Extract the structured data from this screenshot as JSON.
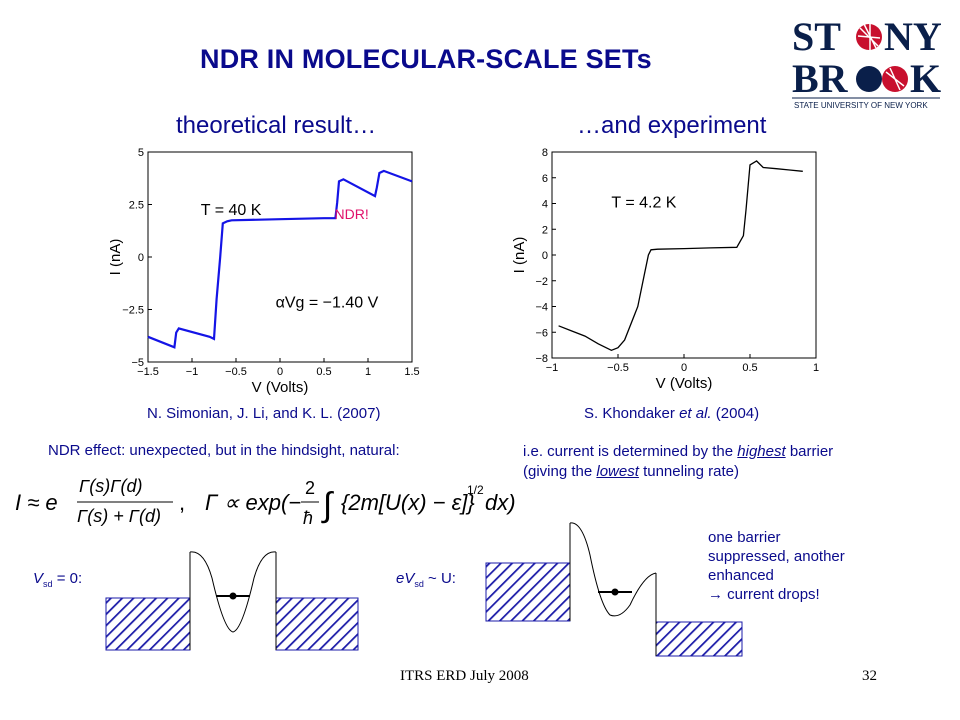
{
  "slide": {
    "title": "NDR IN MOLECULAR-SCALE SETs",
    "left_heading": "theoretical result…",
    "right_heading": "…and experiment",
    "left_citation": "N. Simonian, J. Li, and K. L. (2007)",
    "right_citation_prefix": "S. Khondaker ",
    "right_citation_etal": "et al.",
    "right_citation_suffix": " (2004)",
    "ndr_effect": "NDR effect: unexpected, but in the hindsight, natural:",
    "ie_line1_a": "i.e. current is determined by the ",
    "ie_line1_b": "highest",
    "ie_line1_c": " barrier",
    "ie_line2_a": "(giving the ",
    "ie_line2_b": "lowest",
    "ie_line2_c": " tunneling rate)",
    "vsd_label_a": "V",
    "vsd_label_sub": "sd",
    "vsd_label_b": " = 0:",
    "evsd_label_a": "eV",
    "evsd_label_sub": "sd",
    "evsd_label_b": " ~ U:",
    "barrier_note_1": "one barrier",
    "barrier_note_2": "suppressed, another",
    "barrier_note_3": "enhanced",
    "barrier_note_4": "→ current drops!",
    "footer_left": "ITRS ERD July 2008",
    "footer_right": "32"
  },
  "logo": {
    "line1": "ST●NY",
    "line2": "BR●●K",
    "sub": "STATE UNIVERSITY OF NEW YORK"
  },
  "formula": {
    "I_approx": "I ≈ e",
    "numerator": "Γ(s)Γ(d)",
    "denominator": "Γ(s) + Γ(d)",
    "gamma_rel": "Γ ∝ exp(−",
    "two": "2",
    "hbar": "ħ",
    "integrand": "{2m[U(x) − ε]}",
    "half": "1/2",
    "dx": " dx)"
  },
  "chart_data": [
    {
      "type": "line",
      "title": "",
      "xlabel": "V (Volts)",
      "ylabel": "I (nA)",
      "xlim": [
        -1.5,
        1.5
      ],
      "ylim": [
        -5,
        5
      ],
      "xticks": [
        "−1.5",
        "−1",
        "−0.5",
        "0",
        "0.5",
        "1",
        "1.5"
      ],
      "yticks": [
        "5",
        "2.5",
        "0",
        "−2.5",
        "−5"
      ],
      "annotations": [
        "T = 40 K",
        "NDR!",
        "αVg = −1.40 V"
      ],
      "series": [
        {
          "color": "#1414e6",
          "x": [
            -1.5,
            -1.2,
            -1.18,
            -1.15,
            -0.8,
            -0.75,
            -0.72,
            -0.68,
            -0.65,
            -0.6,
            -0.55,
            0.0,
            0.5,
            0.63,
            0.65,
            0.67,
            0.72,
            1.08,
            1.1,
            1.13,
            1.18,
            1.5
          ],
          "y": [
            -3.8,
            -4.3,
            -3.6,
            -3.4,
            -3.8,
            -3.9,
            -2.0,
            0.0,
            1.6,
            1.7,
            1.75,
            1.8,
            1.85,
            1.85,
            2.6,
            3.6,
            3.7,
            2.9,
            3.3,
            4.0,
            4.1,
            3.6
          ]
        }
      ]
    },
    {
      "type": "line",
      "title": "",
      "xlabel": "V (Volts)",
      "ylabel": "I (nA)",
      "xlim": [
        -1,
        1
      ],
      "ylim": [
        -8,
        8
      ],
      "xticks": [
        "−1",
        "−0.5",
        "0",
        "0.5",
        "1"
      ],
      "yticks": [
        "8",
        "6",
        "4",
        "2",
        "0",
        "−2",
        "−4",
        "−6",
        "−8"
      ],
      "annotations": [
        "T = 4.2 K"
      ],
      "series": [
        {
          "color": "#000000",
          "x": [
            -0.95,
            -0.85,
            -0.75,
            -0.65,
            -0.55,
            -0.5,
            -0.45,
            -0.35,
            -0.3,
            -0.27,
            -0.25,
            -0.2,
            0.0,
            0.2,
            0.4,
            0.45,
            0.47,
            0.5,
            0.55,
            0.6,
            0.7,
            0.8,
            0.9
          ],
          "y": [
            -5.5,
            -5.9,
            -6.3,
            -6.9,
            -7.4,
            -7.2,
            -6.6,
            -4.0,
            -1.5,
            0.0,
            0.4,
            0.45,
            0.5,
            0.55,
            0.6,
            1.5,
            3.5,
            7.0,
            7.3,
            6.8,
            6.7,
            6.6,
            6.5
          ]
        }
      ]
    }
  ]
}
